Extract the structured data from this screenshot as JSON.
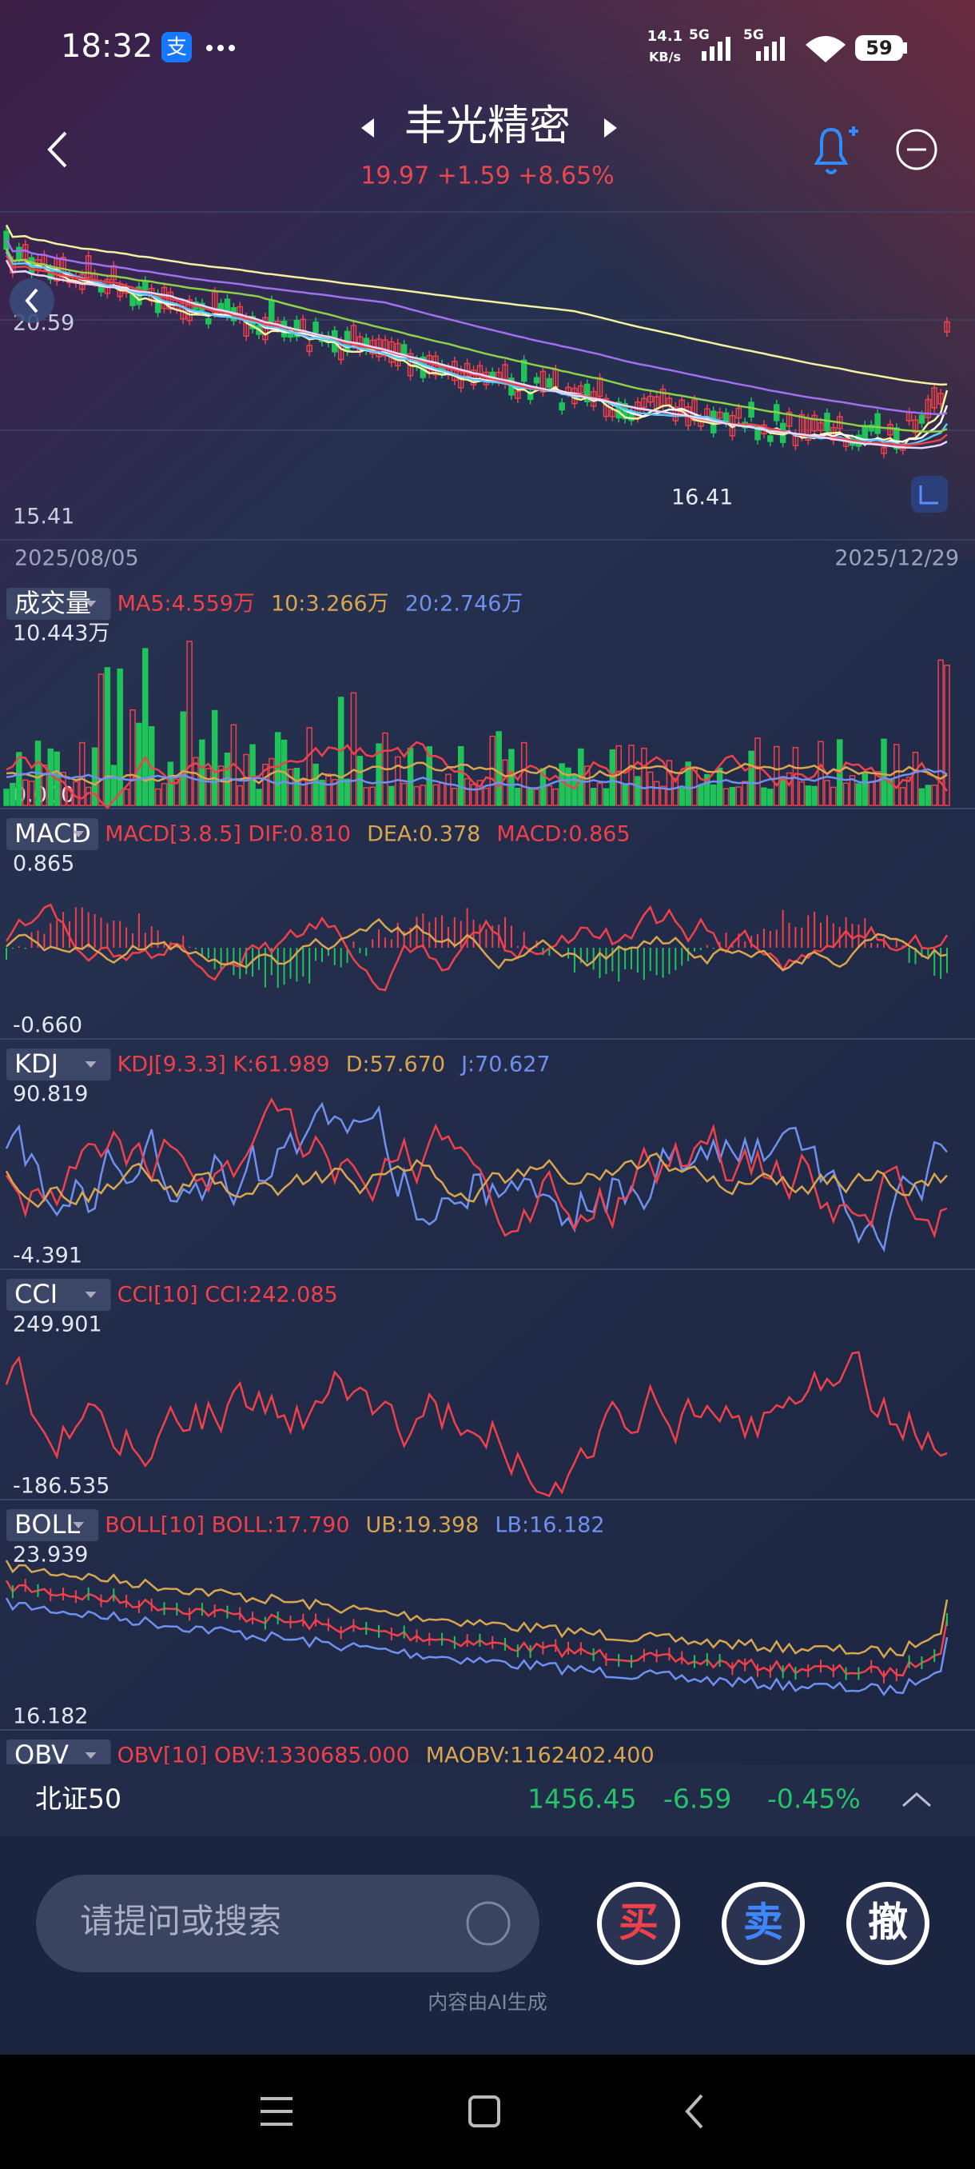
{
  "status_bar": {
    "time": "18:32",
    "speed_value": "14.1",
    "speed_unit": "KB/s",
    "network_1": "5G",
    "network_2": "5G",
    "battery": "59"
  },
  "header": {
    "title": "丰光精密",
    "quote": "19.97 +1.59 +8.65%"
  },
  "price_chart": {
    "upper_label": "20.59",
    "lower_label": "15.41",
    "low_marker": "16.41",
    "start_date": "2025/08/05",
    "end_date": "2025/12/29"
  },
  "indicators": [
    {
      "name": "成交量",
      "max": "10.443万",
      "min": "0.000",
      "params": [
        {
          "text": "MA5:4.559万",
          "color": "#f0404a"
        },
        {
          "text": "10:3.266万",
          "color": "#d9a650"
        },
        {
          "text": "20:2.746万",
          "color": "#7090f0"
        }
      ]
    },
    {
      "name": "MACD",
      "max": "0.865",
      "min": "-0.660",
      "params": [
        {
          "text": "MACD[3.8.5] DIF:0.810",
          "color": "#f0404a"
        },
        {
          "text": "DEA:0.378",
          "color": "#d9a650"
        },
        {
          "text": "MACD:0.865",
          "color": "#f0404a"
        }
      ]
    },
    {
      "name": "KDJ",
      "max": "90.819",
      "min": "-4.391",
      "params": [
        {
          "text": "KDJ[9.3.3] K:61.989",
          "color": "#f0404a"
        },
        {
          "text": "D:57.670",
          "color": "#d9a650"
        },
        {
          "text": "J:70.627",
          "color": "#7090f0"
        }
      ]
    },
    {
      "name": "CCI",
      "max": "249.901",
      "min": "-186.535",
      "params": [
        {
          "text": "CCI[10] CCI:242.085",
          "color": "#f0404a"
        }
      ]
    },
    {
      "name": "BOLL",
      "max": "23.939",
      "min": "16.182",
      "params": [
        {
          "text": "BOLL[10] BOLL:17.790",
          "color": "#f0404a"
        },
        {
          "text": "UB:19.398",
          "color": "#d9a650"
        },
        {
          "text": "LB:16.182",
          "color": "#7090f0"
        }
      ]
    },
    {
      "name": "OBV",
      "params": [
        {
          "text": "OBV[10] OBV:1330685.000",
          "color": "#f0404a"
        },
        {
          "text": "MAOBV:1162402.400",
          "color": "#d9a650"
        }
      ]
    }
  ],
  "bottom_bar": {
    "index_name": "北证50",
    "value": "1456.45",
    "change": "-6.59",
    "percent": "-0.45%"
  },
  "assistant": {
    "placeholder": "请提问或搜索",
    "buy": "买",
    "sell": "卖",
    "cancel": "撤",
    "note": "内容由AI生成"
  }
}
